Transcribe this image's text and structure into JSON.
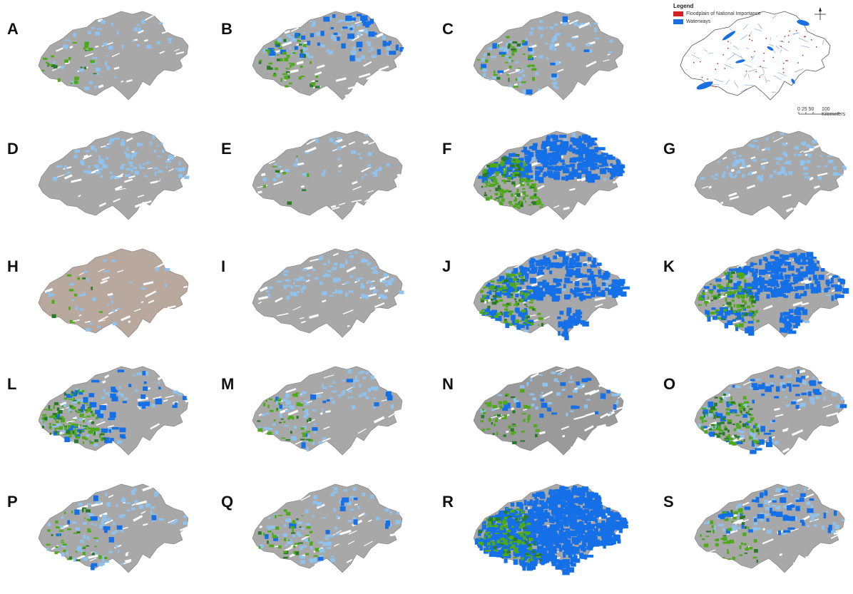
{
  "panels": [
    {
      "label": "A",
      "variant": "light_green"
    },
    {
      "label": "B",
      "variant": "mixed_medium"
    },
    {
      "label": "C",
      "variant": "mixed_light"
    },
    {
      "label": "D",
      "variant": "light_blue"
    },
    {
      "label": "E",
      "variant": "sparse"
    },
    {
      "label": "F",
      "variant": "blue_heavy"
    },
    {
      "label": "G",
      "variant": "light_blue"
    },
    {
      "label": "H",
      "variant": "tan_base"
    },
    {
      "label": "I",
      "variant": "light_blue"
    },
    {
      "label": "J",
      "variant": "blue_heavy_south"
    },
    {
      "label": "K",
      "variant": "blue_heavy_south"
    },
    {
      "label": "L",
      "variant": "mixed_green"
    },
    {
      "label": "M",
      "variant": "mixed_light"
    },
    {
      "label": "N",
      "variant": "dark_gray_mixed"
    },
    {
      "label": "O",
      "variant": "mixed_green"
    },
    {
      "label": "P",
      "variant": "mixed_light"
    },
    {
      "label": "Q",
      "variant": "mixed_light"
    },
    {
      "label": "R",
      "variant": "blue_full"
    },
    {
      "label": "S",
      "variant": "mixed_medium"
    }
  ],
  "legend": {
    "title": "Legend",
    "items": [
      {
        "label": "Floodplain of National Importance",
        "color": "#d42020"
      },
      {
        "label": "Waterways",
        "color": "#1a6fe0"
      }
    ],
    "scale_label_left": "0  25 50",
    "scale_label_right": "100 Kilometers"
  },
  "colors": {
    "base_gray": "#a8a8a8",
    "base_tan": "#b9a89e",
    "light_blue": "#8ec3f0",
    "blue": "#1570e8",
    "green": "#4faa1a",
    "dark_green": "#2a7a2a",
    "red": "#d42020",
    "outline": "#7a7a7a"
  }
}
